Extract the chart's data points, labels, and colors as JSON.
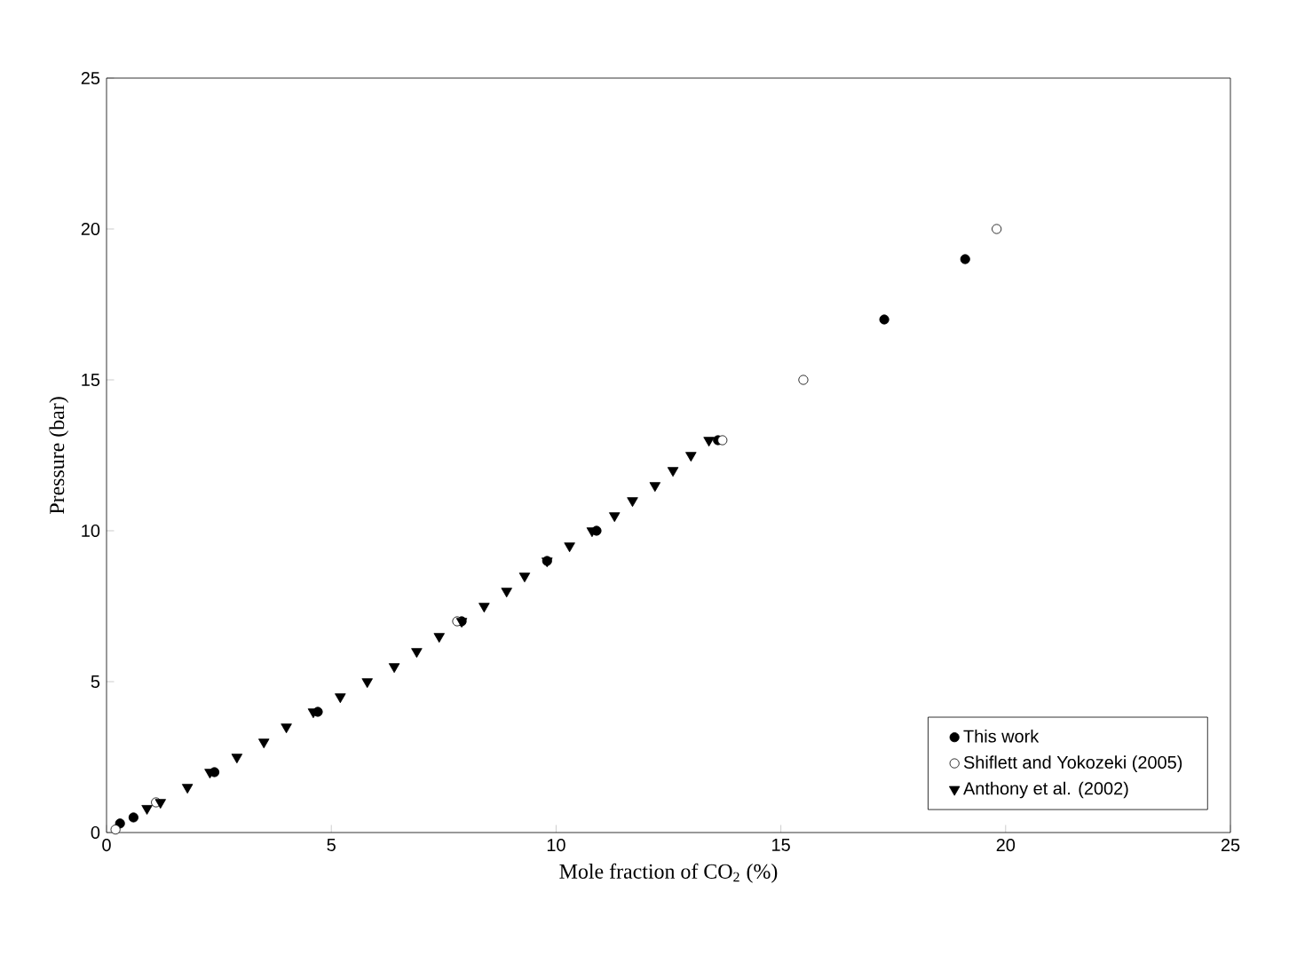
{
  "chart_data": {
    "type": "scatter",
    "xlabel": "Mole fraction of CO$_{2}$ (%)",
    "ylabel": "Pressure (bar)",
    "xlim": [
      0,
      25
    ],
    "ylim": [
      0,
      25
    ],
    "xticks": [
      0,
      5,
      10,
      15,
      20,
      25
    ],
    "yticks": [
      0,
      5,
      10,
      15,
      20,
      25
    ],
    "grid": false,
    "legend": "bottom right",
    "series": [
      {
        "name": "This work",
        "color": "#000000",
        "marker": "circle",
        "x": [
          0.3,
          0.6,
          2.4,
          4.7,
          7.9,
          9.8,
          10.9,
          13.6,
          17.3,
          19.1
        ],
        "values": [
          0.3,
          0.5,
          2,
          4,
          7,
          9,
          10,
          13,
          17,
          19
        ]
      },
      {
        "name": "Shiflett and Yokozeki (2005)",
        "color": "#ffffff",
        "marker": "circle",
        "x": [
          0.2,
          1.1,
          7.8,
          13.7,
          15.5,
          19.8
        ],
        "values": [
          0.1,
          1,
          7,
          13,
          15,
          20
        ]
      },
      {
        "name": "Anthony et al. (2002)",
        "color": "#000000",
        "marker": "triangle",
        "x": [
          0.9,
          1.2,
          1.8,
          2.3,
          2.9,
          3.5,
          4.0,
          4.6,
          5.2,
          5.8,
          6.4,
          6.9,
          7.4,
          7.9,
          8.4,
          8.9,
          9.3,
          9.8,
          10.3,
          10.8,
          11.3,
          11.7,
          12.2,
          12.6,
          13.0,
          13.4
        ],
        "values": [
          0.8,
          1.0,
          1.5,
          2.0,
          2.5,
          3.0,
          3.5,
          4.0,
          4.5,
          5.0,
          5.5,
          6.0,
          6.5,
          7.0,
          7.5,
          8.0,
          8.5,
          9.0,
          9.5,
          10.0,
          10.5,
          11.0,
          11.5,
          12.0,
          12.5,
          13.0
        ]
      }
    ]
  }
}
